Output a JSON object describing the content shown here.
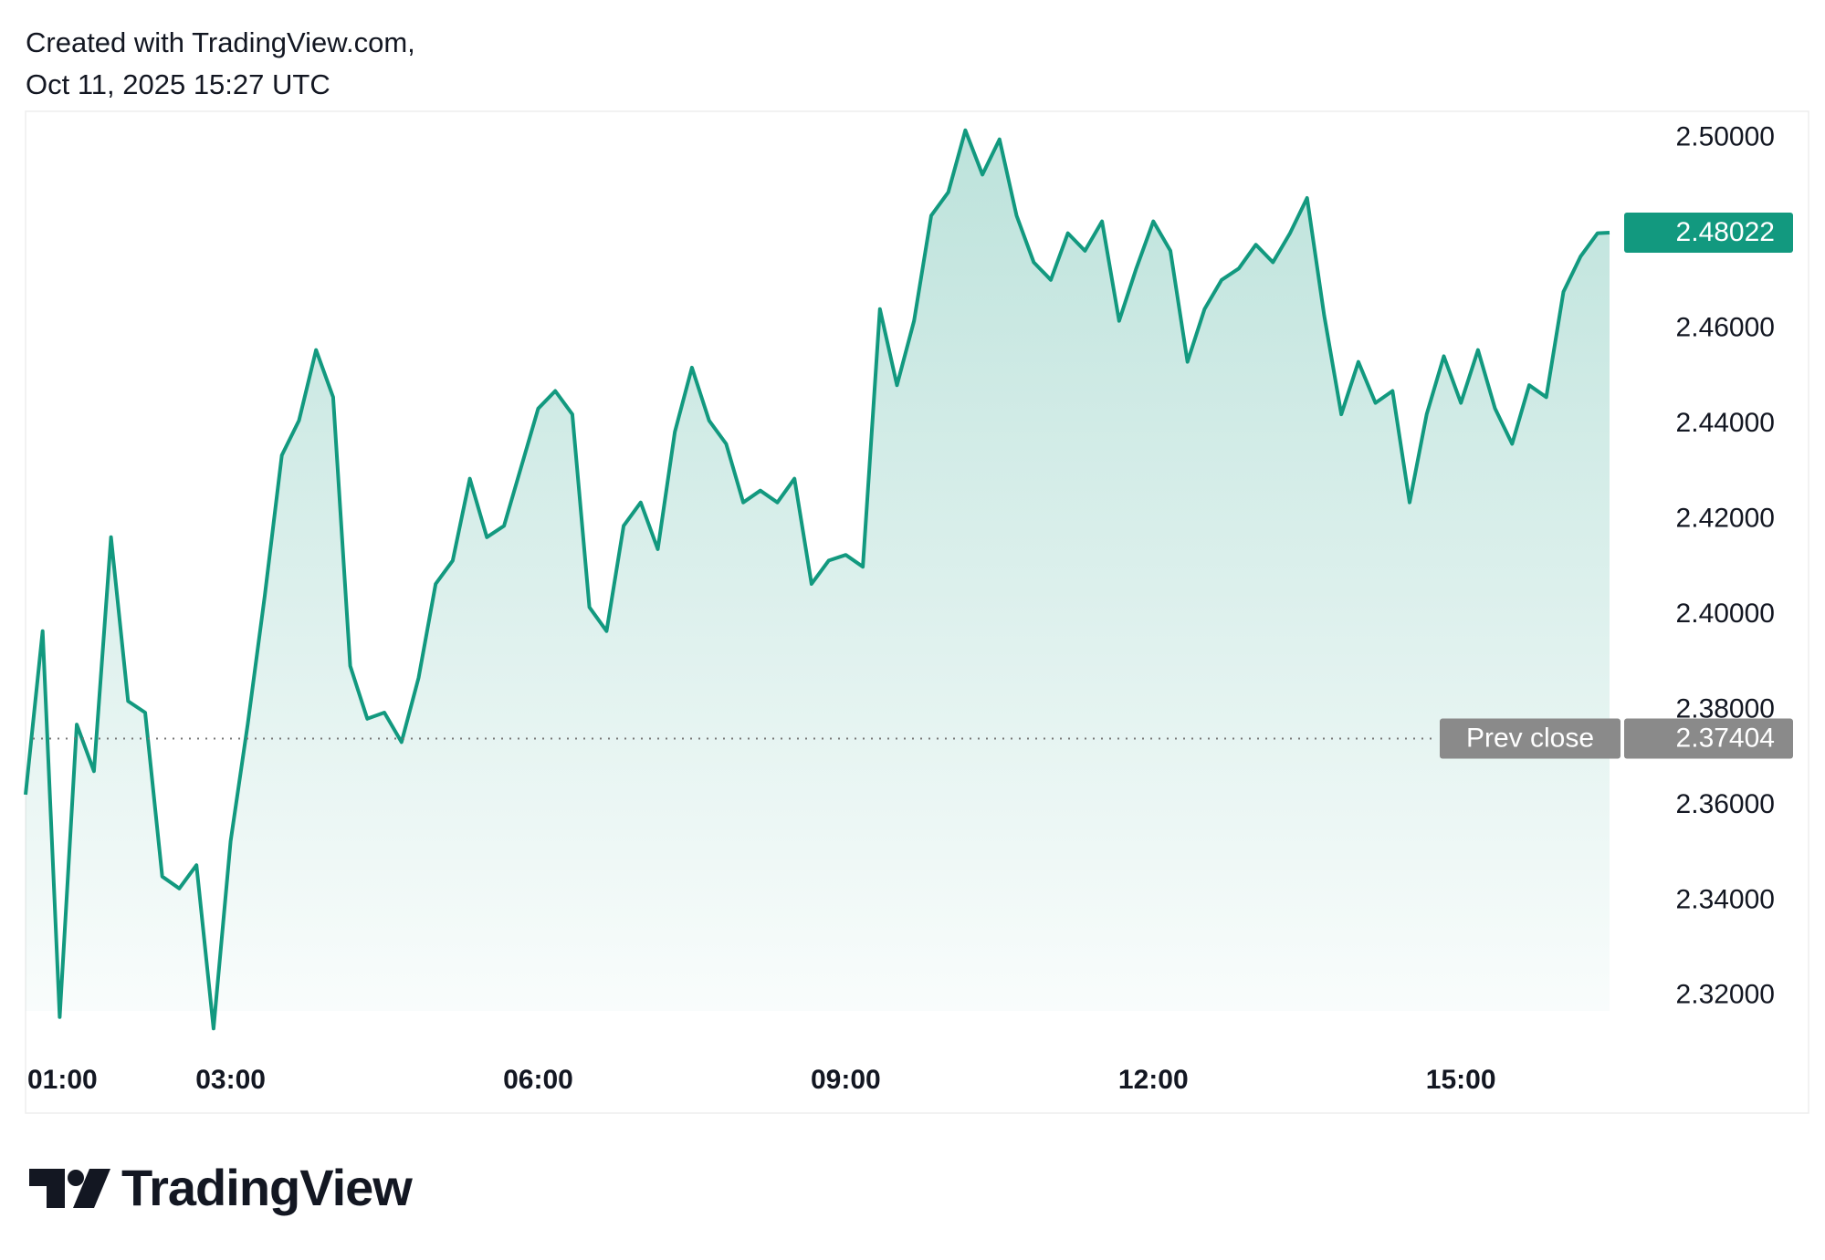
{
  "header": {
    "line1": "Created with TradingView.com,",
    "line2": "Oct 11, 2025 15:27 UTC"
  },
  "chart_data": {
    "type": "area",
    "color": "#12997f",
    "x": [
      "01:00",
      "01:10",
      "01:20",
      "01:30",
      "01:40",
      "01:50",
      "02:00",
      "02:10",
      "02:20",
      "02:30",
      "02:40",
      "02:50",
      "03:00",
      "03:10",
      "03:20",
      "03:30",
      "03:40",
      "03:50",
      "04:00",
      "04:10",
      "04:20",
      "04:30",
      "04:40",
      "04:50",
      "05:00",
      "05:10",
      "05:20",
      "05:30",
      "05:40",
      "05:50",
      "06:00",
      "06:10",
      "06:20",
      "06:30",
      "06:40",
      "06:50",
      "07:00",
      "07:10",
      "07:20",
      "07:30",
      "07:40",
      "07:50",
      "08:00",
      "08:10",
      "08:20",
      "08:30",
      "08:40",
      "08:50",
      "09:00",
      "09:10",
      "09:20",
      "09:30",
      "09:40",
      "09:50",
      "10:00",
      "10:10",
      "10:20",
      "10:30",
      "10:40",
      "10:50",
      "11:00",
      "11:10",
      "11:20",
      "11:30",
      "11:40",
      "11:50",
      "12:00",
      "12:10",
      "12:20",
      "12:30",
      "12:40",
      "12:50",
      "13:00",
      "13:10",
      "13:20",
      "13:30",
      "13:40",
      "13:50",
      "14:00",
      "14:10",
      "14:20",
      "14:30",
      "14:40",
      "14:50",
      "15:00",
      "15:10",
      "15:20",
      "15:30",
      "15:40",
      "15:50",
      "16:00",
      "16:10",
      "16:20",
      "16:27"
    ],
    "values": [
      2.3623,
      2.3966,
      2.3156,
      2.377,
      2.3672,
      2.4163,
      2.3819,
      2.3795,
      2.3451,
      2.3426,
      2.3475,
      2.3132,
      2.3525,
      2.377,
      2.404,
      2.4335,
      2.4408,
      2.4556,
      2.4457,
      2.3893,
      2.3782,
      2.3795,
      2.3733,
      2.3868,
      2.4065,
      2.4114,
      2.4286,
      2.4163,
      2.4187,
      2.431,
      2.4433,
      2.447,
      2.4421,
      2.4016,
      2.3966,
      2.4187,
      2.4236,
      2.4138,
      2.4384,
      2.4519,
      2.4408,
      2.4359,
      2.4236,
      2.4261,
      2.4236,
      2.4286,
      2.4065,
      2.4114,
      2.4126,
      2.4101,
      2.4642,
      2.4482,
      2.4617,
      2.4838,
      2.4887,
      2.5017,
      2.4924,
      2.4998,
      2.4838,
      2.474,
      2.4703,
      2.4801,
      2.4764,
      2.4826,
      2.4617,
      2.4727,
      2.4826,
      2.4764,
      2.4531,
      2.4642,
      2.4703,
      2.4727,
      2.4777,
      2.474,
      2.4801,
      2.4875,
      2.4629,
      2.4421,
      2.4531,
      2.4445,
      2.447,
      2.4236,
      2.4421,
      2.4543,
      2.4445,
      2.4556,
      2.4433,
      2.4359,
      2.4482,
      2.4457,
      2.4678,
      2.4752,
      2.4801,
      2.48022
    ],
    "xlim": [
      "01:00",
      "16:27"
    ],
    "xticks": [
      "01:00",
      "03:00",
      "06:00",
      "09:00",
      "12:00",
      "15:00"
    ],
    "ylim": [
      2.3169,
      2.5053
    ],
    "yticks": [
      {
        "value": 2.32,
        "label": "2.32000"
      },
      {
        "value": 2.34,
        "label": "2.34000"
      },
      {
        "value": 2.36,
        "label": "2.36000"
      },
      {
        "value": 2.38,
        "label": "2.38000"
      },
      {
        "value": 2.4,
        "label": "2.40000"
      },
      {
        "value": 2.42,
        "label": "2.42000"
      },
      {
        "value": 2.44,
        "label": "2.44000"
      },
      {
        "value": 2.46,
        "label": "2.46000"
      },
      {
        "value": 2.48,
        "label": "2.48000"
      },
      {
        "value": 2.5,
        "label": "2.50000"
      }
    ],
    "prev_close": {
      "label": "Prev close",
      "value": 2.37404,
      "color": "#8a8a8a"
    }
  },
  "footer": {
    "brand": "TradingView"
  }
}
